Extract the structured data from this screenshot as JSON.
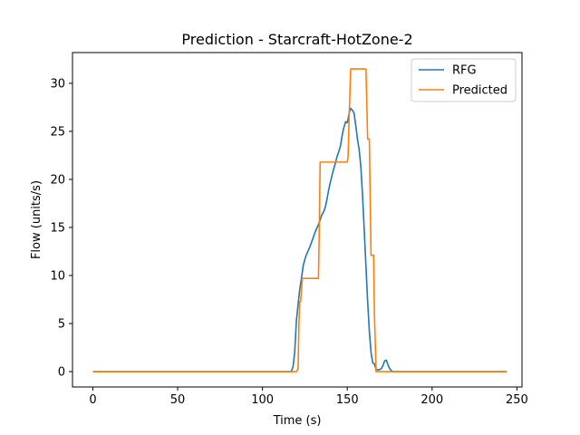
{
  "chart_data": {
    "type": "line",
    "title": "Prediction - Starcraft-HotZone-2",
    "xlabel": "Time (s)",
    "ylabel": "Flow (units/s)",
    "xlim": [
      -12,
      253
    ],
    "ylim": [
      -1.6,
      33.2
    ],
    "xticks": [
      0,
      50,
      100,
      150,
      200,
      250
    ],
    "yticks": [
      0,
      5,
      10,
      15,
      20,
      25,
      30
    ],
    "grid": false,
    "legend": "top-right",
    "series": [
      {
        "name": "RFG",
        "color": "#1f77b4",
        "x": [
          0,
          117,
          118,
          119,
          120,
          121,
          122,
          123,
          124,
          125,
          126,
          127,
          128,
          129,
          130,
          131,
          132,
          133,
          134,
          135,
          136,
          137,
          138,
          139,
          140,
          141,
          142,
          143,
          144,
          145,
          146,
          147,
          148,
          149,
          150,
          151,
          152,
          153,
          154,
          155,
          156,
          157,
          158,
          159,
          160,
          161,
          162,
          163,
          164,
          165,
          166,
          167,
          168,
          169,
          170,
          171,
          172,
          173,
          174,
          175,
          176,
          177,
          178,
          179,
          180,
          181,
          182,
          183,
          184,
          185,
          244
        ],
        "y": [
          0,
          0,
          0.5,
          2,
          5.3,
          7,
          8.6,
          9.7,
          11,
          11.7,
          12.2,
          12.6,
          13,
          13.5,
          14,
          14.5,
          14.9,
          15.3,
          15.8,
          16.3,
          16.6,
          17.1,
          17.9,
          18.9,
          19.7,
          20.4,
          21.1,
          21.7,
          22.4,
          22.9,
          23.5,
          24.6,
          25.4,
          26,
          25.9,
          26.8,
          27.4,
          27.2,
          26.9,
          25.6,
          24.2,
          23.1,
          21.3,
          18.3,
          14.7,
          11,
          7.3,
          4.2,
          2,
          0.9,
          0.8,
          0.2,
          0.2,
          0.2,
          0.3,
          0.6,
          1.1,
          1.2,
          0.7,
          0.3,
          0.1,
          0,
          0,
          0,
          0,
          0,
          0,
          0,
          0,
          0,
          0
        ]
      },
      {
        "name": "Predicted",
        "color": "#ff7f0e",
        "x": [
          0,
          120,
          121,
          121.5,
          122,
          122.5,
          123,
          123.5,
          124,
          133,
          133.5,
          134,
          150,
          150.5,
          151,
          152,
          152.5,
          161,
          161.5,
          162,
          163,
          163.5,
          164,
          165.5,
          166,
          167,
          167.5,
          244
        ],
        "y": [
          0,
          0,
          0.3,
          5,
          7.3,
          7.3,
          8.5,
          9.7,
          9.7,
          9.7,
          15,
          21.8,
          21.8,
          22.4,
          26,
          31.5,
          31.5,
          31.5,
          28,
          24.2,
          24.2,
          18,
          12.1,
          12.1,
          6,
          0,
          0,
          0
        ]
      }
    ]
  }
}
